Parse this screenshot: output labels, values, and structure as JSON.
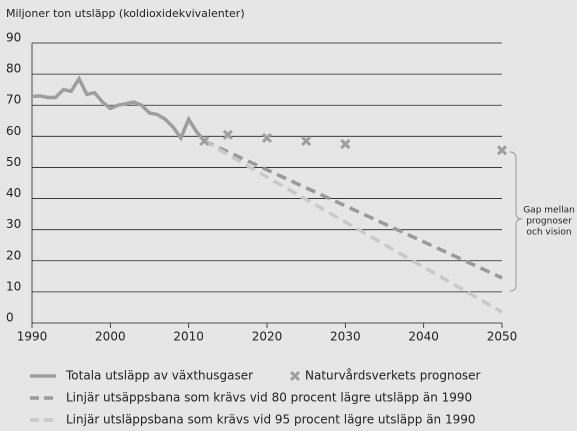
{
  "chart_data": {
    "type": "line",
    "y_label": "Miljoner ton utsläpp (koldioxidekvivalenter)",
    "xlim": [
      1990,
      2050
    ],
    "xticks": [
      1990,
      2000,
      2010,
      2020,
      2030,
      2040,
      2050
    ],
    "ylim": [
      0,
      90
    ],
    "yticks": [
      0,
      10,
      20,
      30,
      40,
      50,
      60,
      70,
      80,
      90
    ],
    "grid": true,
    "annotation": [
      "Gap mellan",
      "prognoser",
      "och vision"
    ],
    "series": [
      {
        "name": "Totala utsläpp av växthusgaser",
        "color": "#9e9e9e",
        "type": "line",
        "style": "solid",
        "x": [
          1990,
          1991,
          1992,
          1993,
          1994,
          1995,
          1996,
          1997,
          1998,
          1999,
          2000,
          2001,
          2002,
          2003,
          2004,
          2005,
          2006,
          2007,
          2008,
          2009,
          2010,
          2011,
          2012
        ],
        "values": [
          72.8,
          73,
          72.5,
          72.5,
          75,
          74.5,
          78.5,
          73.5,
          74,
          71,
          69,
          70,
          70.5,
          71,
          70,
          67.5,
          67,
          65.5,
          63,
          59.5,
          65.5,
          61.5,
          58.5
        ]
      },
      {
        "name": "Naturvårdsverkets prognoser",
        "color": "#9e9e9e",
        "type": "scatter",
        "style": "x",
        "x": [
          2012,
          2015,
          2020,
          2025,
          2030,
          2050
        ],
        "values": [
          58.5,
          60.5,
          59.5,
          58.5,
          57.5,
          55.5
        ]
      },
      {
        "name": "Linjär utsäppsbana som krävs vid 80 procent lägre utsläpp än 1990",
        "color": "#9a9a9a",
        "type": "line",
        "style": "dashed",
        "x": [
          2012,
          2050
        ],
        "values": [
          58.5,
          14.5
        ]
      },
      {
        "name": "Linjär utsläppsbana som krävs vid 95 procent lägre utsläpp än 1990",
        "color": "#c9c9c9",
        "type": "line",
        "style": "dashed",
        "x": [
          2012,
          2050
        ],
        "values": [
          58.5,
          3.5
        ]
      }
    ]
  }
}
